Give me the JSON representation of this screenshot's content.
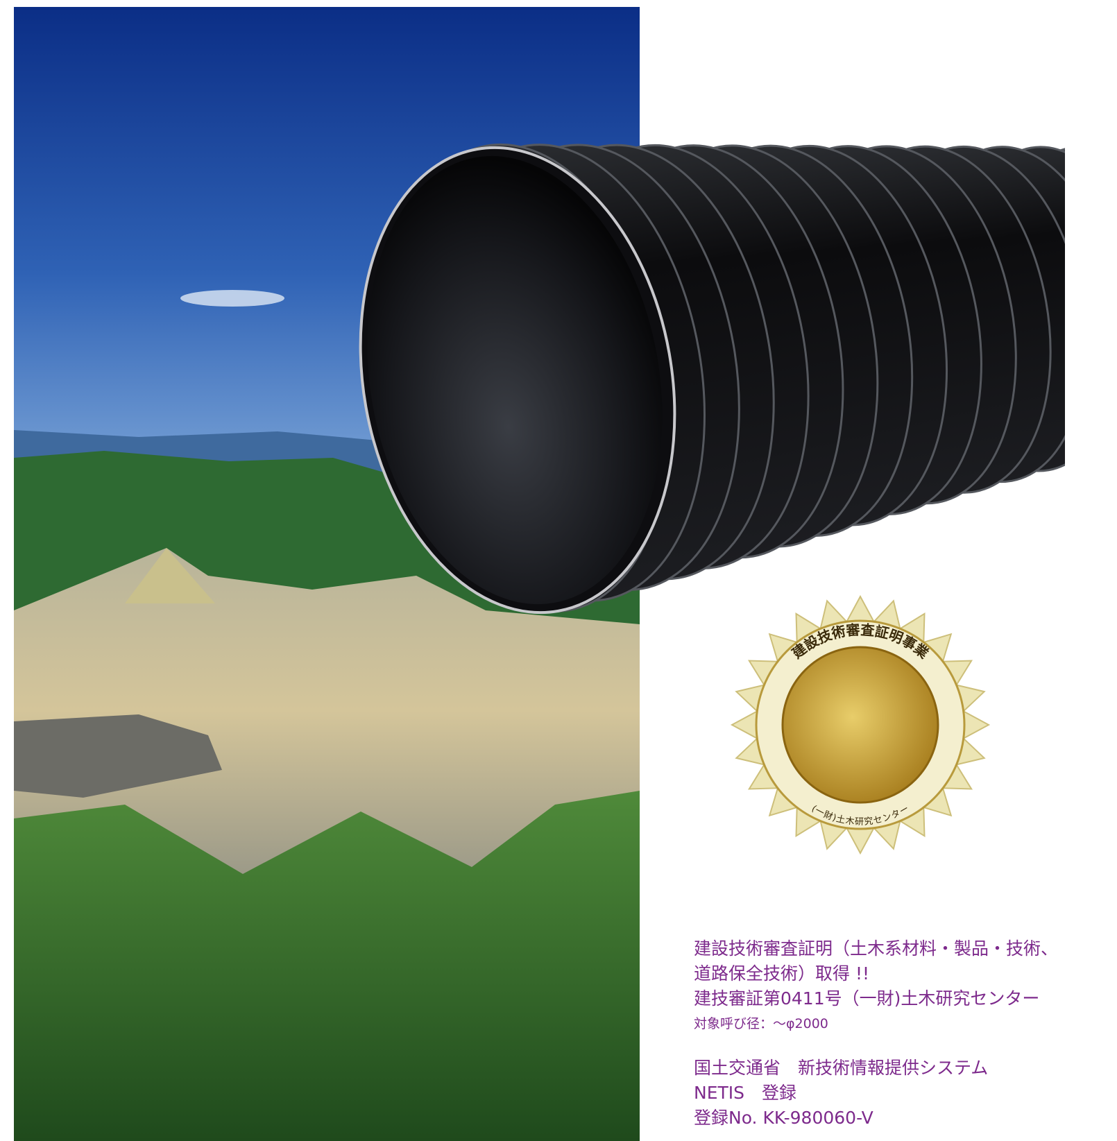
{
  "certification": {
    "lines": [
      "建設技術審査証明（土木系材料・製品・技術、",
      "道路保全技術）取得 !!",
      "建技審証第0411号（一財)土木研究センター"
    ],
    "note": "対象呼び径：～φ2000"
  },
  "netis": {
    "lines": [
      "国土交通省　新技術情報提供システム",
      "NETIS　登録",
      "登録No. KK-980060-V"
    ]
  },
  "seal": {
    "top_text": "建設技術審査証明事業",
    "bottom_text": "(一財)土木研究センター"
  }
}
